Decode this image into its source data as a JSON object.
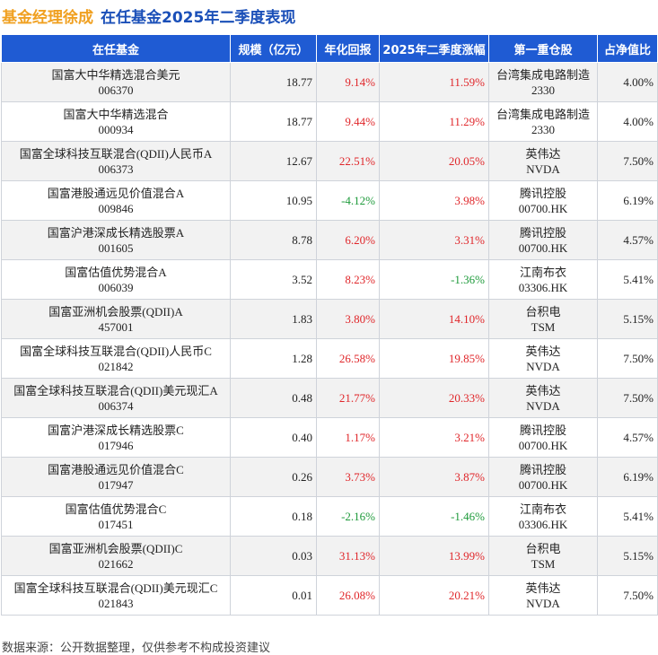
{
  "title": {
    "manager": "基金经理徐成",
    "main": "在任基金2025年二季度表现"
  },
  "table": {
    "headers": [
      "在任基金",
      "规模（亿元）",
      "年化回报",
      "2025年二季度涨幅",
      "第一重仓股",
      "占净值比"
    ],
    "rows": [
      {
        "name": "国富大中华精选混合美元",
        "code": "006370",
        "scale": "18.77",
        "annual": "9.14%",
        "q2": "11.59%",
        "stock": "台湾集成电路制造",
        "ticker": "2330",
        "ratio": "4.00%"
      },
      {
        "name": "国富大中华精选混合",
        "code": "000934",
        "scale": "18.77",
        "annual": "9.44%",
        "q2": "11.29%",
        "stock": "台湾集成电路制造",
        "ticker": "2330",
        "ratio": "4.00%"
      },
      {
        "name": "国富全球科技互联混合(QDII)人民币A",
        "code": "006373",
        "scale": "12.67",
        "annual": "22.51%",
        "q2": "20.05%",
        "stock": "英伟达",
        "ticker": "NVDA",
        "ratio": "7.50%"
      },
      {
        "name": "国富港股通远见价值混合A",
        "code": "009846",
        "scale": "10.95",
        "annual": "-4.12%",
        "q2": "3.98%",
        "stock": "腾讯控股",
        "ticker": "00700.HK",
        "ratio": "6.19%"
      },
      {
        "name": "国富沪港深成长精选股票A",
        "code": "001605",
        "scale": "8.78",
        "annual": "6.20%",
        "q2": "3.31%",
        "stock": "腾讯控股",
        "ticker": "00700.HK",
        "ratio": "4.57%"
      },
      {
        "name": "国富估值优势混合A",
        "code": "006039",
        "scale": "3.52",
        "annual": "8.23%",
        "q2": "-1.36%",
        "stock": "江南布衣",
        "ticker": "03306.HK",
        "ratio": "5.41%"
      },
      {
        "name": "国富亚洲机会股票(QDII)A",
        "code": "457001",
        "scale": "1.83",
        "annual": "3.80%",
        "q2": "14.10%",
        "stock": "台积电",
        "ticker": "TSM",
        "ratio": "5.15%"
      },
      {
        "name": "国富全球科技互联混合(QDII)人民币C",
        "code": "021842",
        "scale": "1.28",
        "annual": "26.58%",
        "q2": "19.85%",
        "stock": "英伟达",
        "ticker": "NVDA",
        "ratio": "7.50%"
      },
      {
        "name": "国富全球科技互联混合(QDII)美元现汇A",
        "code": "006374",
        "scale": "0.48",
        "annual": "21.77%",
        "q2": "20.33%",
        "stock": "英伟达",
        "ticker": "NVDA",
        "ratio": "7.50%"
      },
      {
        "name": "国富沪港深成长精选股票C",
        "code": "017946",
        "scale": "0.40",
        "annual": "1.17%",
        "q2": "3.21%",
        "stock": "腾讯控股",
        "ticker": "00700.HK",
        "ratio": "4.57%"
      },
      {
        "name": "国富港股通远见价值混合C",
        "code": "017947",
        "scale": "0.26",
        "annual": "3.73%",
        "q2": "3.87%",
        "stock": "腾讯控股",
        "ticker": "00700.HK",
        "ratio": "6.19%"
      },
      {
        "name": "国富估值优势混合C",
        "code": "017451",
        "scale": "0.18",
        "annual": "-2.16%",
        "q2": "-1.46%",
        "stock": "江南布衣",
        "ticker": "03306.HK",
        "ratio": "5.41%"
      },
      {
        "name": "国富亚洲机会股票(QDII)C",
        "code": "021662",
        "scale": "0.03",
        "annual": "31.13%",
        "q2": "13.99%",
        "stock": "台积电",
        "ticker": "TSM",
        "ratio": "5.15%"
      },
      {
        "name": "国富全球科技互联混合(QDII)美元现汇C",
        "code": "021843",
        "scale": "0.01",
        "annual": "26.08%",
        "q2": "20.21%",
        "stock": "英伟达",
        "ticker": "NVDA",
        "ratio": "7.50%"
      }
    ]
  },
  "footer": {
    "source": "数据来源：公开数据整理，仅供参考不构成投资建议"
  },
  "colors": {
    "header_bg": "#1f5bd3",
    "positive": "#e0262a",
    "negative": "#1d9a3a",
    "title_manager": "#f0a020",
    "title_main": "#1a4fb8"
  }
}
